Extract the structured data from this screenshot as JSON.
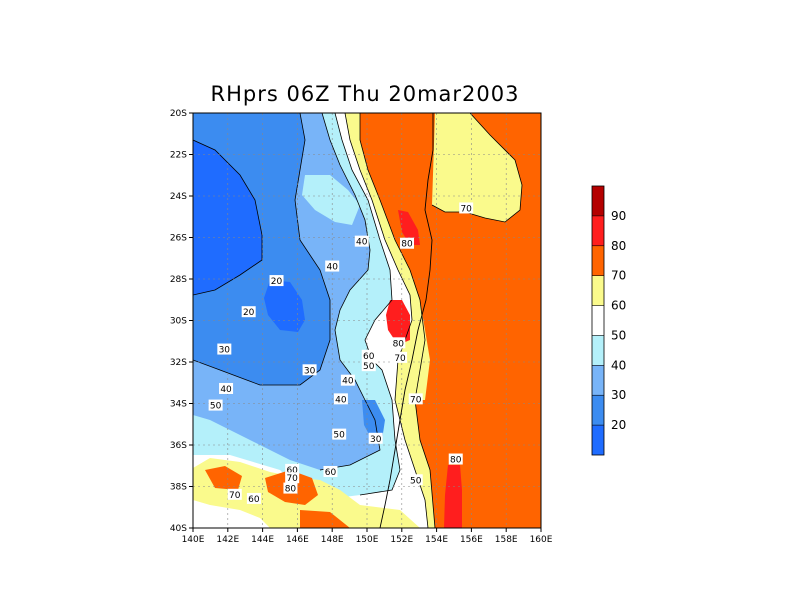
{
  "chart_data": {
    "type": "heatmap",
    "title": "RHprs 06Z Thu 20mar2003",
    "xlim": [
      140,
      160
    ],
    "ylim": [
      -40,
      -20
    ],
    "x_ticks": [
      "140E",
      "142E",
      "144E",
      "146E",
      "148E",
      "150E",
      "152E",
      "154E",
      "156E",
      "158E",
      "160E"
    ],
    "y_ticks": [
      "20S",
      "22S",
      "24S",
      "26S",
      "28S",
      "30S",
      "32S",
      "34S",
      "36S",
      "38S",
      "40S"
    ],
    "grid": true,
    "colorbar": {
      "placement": "right",
      "levels": [
        {
          "range": [
            10,
            20
          ],
          "color": "#1f6cff"
        },
        {
          "range": [
            20,
            30
          ],
          "color": "#3c8cf0"
        },
        {
          "range": [
            30,
            40
          ],
          "color": "#78b4f8"
        },
        {
          "range": [
            40,
            50
          ],
          "color": "#b4f0fa"
        },
        {
          "range": [
            50,
            60
          ],
          "color": "#ffffff"
        },
        {
          "range": [
            60,
            70
          ],
          "color": "#fafa8c"
        },
        {
          "range": [
            70,
            80
          ],
          "color": "#ff6400"
        },
        {
          "range": [
            80,
            90
          ],
          "color": "#ff1e1e"
        },
        {
          "range": [
            90,
            100
          ],
          "color": "#b40000"
        }
      ],
      "tick_labels": [
        "20",
        "30",
        "40",
        "50",
        "60",
        "70",
        "80",
        "90"
      ]
    },
    "contour_labels": [
      {
        "text": "70",
        "lon": 155.7,
        "lat": -24.6
      },
      {
        "text": "80",
        "lon": 152.3,
        "lat": -26.3
      },
      {
        "text": "40",
        "lon": 149.7,
        "lat": -26.2
      },
      {
        "text": "40",
        "lon": 148.0,
        "lat": -27.4
      },
      {
        "text": "20",
        "lon": 144.8,
        "lat": -28.1
      },
      {
        "text": "20",
        "lon": 143.2,
        "lat": -29.6
      },
      {
        "text": "80",
        "lon": 151.8,
        "lat": -31.1
      },
      {
        "text": "60",
        "lon": 150.1,
        "lat": -31.7
      },
      {
        "text": "70",
        "lon": 151.9,
        "lat": -31.8
      },
      {
        "text": "50",
        "lon": 150.1,
        "lat": -32.2
      },
      {
        "text": "30",
        "lon": 141.8,
        "lat": -31.4
      },
      {
        "text": "30",
        "lon": 146.7,
        "lat": -32.4
      },
      {
        "text": "40",
        "lon": 148.9,
        "lat": -32.9
      },
      {
        "text": "40",
        "lon": 141.9,
        "lat": -33.3
      },
      {
        "text": "40",
        "lon": 148.5,
        "lat": -33.8
      },
      {
        "text": "70",
        "lon": 152.8,
        "lat": -33.8
      },
      {
        "text": "50",
        "lon": 141.3,
        "lat": -34.1
      },
      {
        "text": "50",
        "lon": 148.4,
        "lat": -35.5
      },
      {
        "text": "30",
        "lon": 150.5,
        "lat": -35.7
      },
      {
        "text": "80",
        "lon": 155.1,
        "lat": -36.7
      },
      {
        "text": "60",
        "lon": 145.7,
        "lat": -37.2
      },
      {
        "text": "60",
        "lon": 147.9,
        "lat": -37.3
      },
      {
        "text": "70",
        "lon": 145.7,
        "lat": -37.6
      },
      {
        "text": "50",
        "lon": 152.8,
        "lat": -37.7
      },
      {
        "text": "80",
        "lon": 145.6,
        "lat": -38.1
      },
      {
        "text": "70",
        "lon": 142.4,
        "lat": -38.4
      },
      {
        "text": "60",
        "lon": 143.5,
        "lat": -38.6
      }
    ]
  }
}
